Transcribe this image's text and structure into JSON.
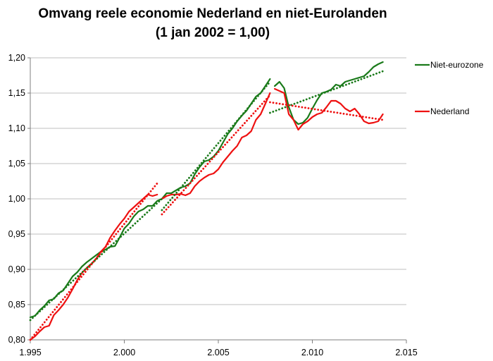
{
  "chart_data": {
    "type": "line",
    "title": "Omvang reele economie Nederland en niet-Eurolanden",
    "subtitle": "(1 jan 2002 = 1,00)",
    "xlabel": "",
    "ylabel": "",
    "xlim": [
      1995,
      2015
    ],
    "ylim": [
      0.8,
      1.2
    ],
    "x_ticks": [
      1995,
      2000,
      2005,
      2010,
      2015
    ],
    "x_tick_labels": [
      "1.995",
      "2.000",
      "2.005",
      "2.010",
      "2.015"
    ],
    "y_ticks": [
      0.8,
      0.85,
      0.9,
      0.95,
      1.0,
      1.05,
      1.1,
      1.15,
      1.2
    ],
    "y_tick_labels": [
      "0,80",
      "0,85",
      "0,90",
      "0,95",
      "1,00",
      "1,05",
      "1,10",
      "1,15",
      "1,20"
    ],
    "grid": "horizontal",
    "legend_position": "right",
    "colors": {
      "niet_eurozone": "#1a7a1a",
      "nederland": "#ee1111",
      "grid": "#bfbfbf"
    },
    "series": [
      {
        "name": "Niet-eurozone",
        "color": "#1a7a1a",
        "style": "solid",
        "segments": [
          [
            [
              1995.0,
              0.832
            ],
            [
              1995.25,
              0.834
            ],
            [
              1995.5,
              0.842
            ],
            [
              1995.75,
              0.848
            ],
            [
              1996.0,
              0.856
            ],
            [
              1996.25,
              0.858
            ],
            [
              1996.5,
              0.866
            ],
            [
              1996.75,
              0.87
            ],
            [
              1997.0,
              0.88
            ],
            [
              1997.25,
              0.89
            ],
            [
              1997.5,
              0.896
            ],
            [
              1997.75,
              0.904
            ],
            [
              1998.0,
              0.91
            ],
            [
              1998.25,
              0.915
            ],
            [
              1998.5,
              0.92
            ],
            [
              1998.75,
              0.925
            ],
            [
              1999.0,
              0.928
            ],
            [
              1999.25,
              0.932
            ],
            [
              1999.5,
              0.933
            ],
            [
              1999.75,
              0.945
            ],
            [
              2000.0,
              0.958
            ],
            [
              2000.25,
              0.965
            ],
            [
              2000.5,
              0.975
            ],
            [
              2000.75,
              0.982
            ],
            [
              2001.0,
              0.985
            ],
            [
              2001.25,
              0.99
            ],
            [
              2001.5,
              0.99
            ],
            [
              2001.75,
              0.997
            ],
            [
              2002.0,
              1.0
            ]
          ],
          [
            [
              2002.0,
              1.0
            ],
            [
              2002.25,
              1.008
            ],
            [
              2002.5,
              1.008
            ],
            [
              2002.75,
              1.012
            ],
            [
              2003.0,
              1.016
            ],
            [
              2003.25,
              1.018
            ],
            [
              2003.5,
              1.022
            ],
            [
              2003.75,
              1.035
            ],
            [
              2004.0,
              1.045
            ],
            [
              2004.25,
              1.053
            ],
            [
              2004.5,
              1.055
            ],
            [
              2004.75,
              1.06
            ],
            [
              2005.0,
              1.068
            ],
            [
              2005.25,
              1.08
            ],
            [
              2005.5,
              1.092
            ],
            [
              2005.75,
              1.1
            ],
            [
              2006.0,
              1.11
            ],
            [
              2006.25,
              1.118
            ],
            [
              2006.5,
              1.125
            ],
            [
              2006.75,
              1.135
            ],
            [
              2007.0,
              1.145
            ],
            [
              2007.25,
              1.15
            ],
            [
              2007.5,
              1.16
            ],
            [
              2007.75,
              1.17
            ]
          ],
          [
            [
              2008.0,
              1.16
            ],
            [
              2008.25,
              1.166
            ],
            [
              2008.5,
              1.157
            ],
            [
              2008.75,
              1.13
            ],
            [
              2009.0,
              1.112
            ],
            [
              2009.25,
              1.106
            ],
            [
              2009.5,
              1.108
            ],
            [
              2009.75,
              1.115
            ],
            [
              2010.0,
              1.128
            ],
            [
              2010.25,
              1.14
            ],
            [
              2010.5,
              1.15
            ],
            [
              2010.75,
              1.152
            ],
            [
              2011.0,
              1.155
            ],
            [
              2011.25,
              1.162
            ],
            [
              2011.5,
              1.16
            ],
            [
              2011.75,
              1.166
            ],
            [
              2012.0,
              1.168
            ],
            [
              2012.25,
              1.17
            ],
            [
              2012.5,
              1.172
            ],
            [
              2012.75,
              1.174
            ],
            [
              2013.0,
              1.18
            ],
            [
              2013.25,
              1.187
            ],
            [
              2013.5,
              1.191
            ],
            [
              2013.75,
              1.194
            ]
          ]
        ]
      },
      {
        "name": "Nederland",
        "color": "#ee1111",
        "style": "solid",
        "segments": [
          [
            [
              1995.0,
              0.8
            ],
            [
              1995.25,
              0.805
            ],
            [
              1995.5,
              0.812
            ],
            [
              1995.75,
              0.818
            ],
            [
              1996.0,
              0.82
            ],
            [
              1996.25,
              0.835
            ],
            [
              1996.5,
              0.842
            ],
            [
              1996.75,
              0.85
            ],
            [
              1997.0,
              0.86
            ],
            [
              1997.25,
              0.872
            ],
            [
              1997.5,
              0.885
            ],
            [
              1997.75,
              0.895
            ],
            [
              1998.0,
              0.902
            ],
            [
              1998.25,
              0.908
            ],
            [
              1998.5,
              0.915
            ],
            [
              1998.75,
              0.925
            ],
            [
              1999.0,
              0.932
            ],
            [
              1999.25,
              0.945
            ],
            [
              1999.5,
              0.955
            ],
            [
              1999.75,
              0.964
            ],
            [
              2000.0,
              0.972
            ],
            [
              2000.25,
              0.982
            ],
            [
              2000.5,
              0.988
            ],
            [
              2000.75,
              0.994
            ],
            [
              2001.0,
              1.0
            ],
            [
              2001.25,
              1.006
            ],
            [
              2001.5,
              1.004
            ],
            [
              2001.75,
              1.006
            ]
          ],
          [
            [
              2002.0,
              1.0
            ],
            [
              2002.25,
              1.004
            ],
            [
              2002.5,
              1.006
            ],
            [
              2002.75,
              1.006
            ],
            [
              2003.0,
              1.007
            ],
            [
              2003.25,
              1.005
            ],
            [
              2003.5,
              1.008
            ],
            [
              2003.75,
              1.018
            ],
            [
              2004.0,
              1.025
            ],
            [
              2004.25,
              1.03
            ],
            [
              2004.5,
              1.034
            ],
            [
              2004.75,
              1.036
            ],
            [
              2005.0,
              1.042
            ],
            [
              2005.25,
              1.052
            ],
            [
              2005.5,
              1.06
            ],
            [
              2005.75,
              1.068
            ],
            [
              2006.0,
              1.075
            ],
            [
              2006.25,
              1.087
            ],
            [
              2006.5,
              1.09
            ],
            [
              2006.75,
              1.096
            ],
            [
              2007.0,
              1.112
            ],
            [
              2007.25,
              1.12
            ],
            [
              2007.5,
              1.135
            ],
            [
              2007.75,
              1.15
            ]
          ],
          [
            [
              2008.0,
              1.156
            ],
            [
              2008.25,
              1.153
            ],
            [
              2008.5,
              1.15
            ],
            [
              2008.75,
              1.12
            ],
            [
              2009.0,
              1.112
            ],
            [
              2009.25,
              1.098
            ],
            [
              2009.5,
              1.106
            ],
            [
              2009.75,
              1.11
            ],
            [
              2010.0,
              1.116
            ],
            [
              2010.25,
              1.12
            ],
            [
              2010.5,
              1.122
            ],
            [
              2010.75,
              1.13
            ],
            [
              2011.0,
              1.139
            ],
            [
              2011.25,
              1.139
            ],
            [
              2011.5,
              1.135
            ],
            [
              2011.75,
              1.128
            ],
            [
              2012.0,
              1.124
            ],
            [
              2012.25,
              1.128
            ],
            [
              2012.5,
              1.12
            ],
            [
              2012.75,
              1.11
            ],
            [
              2013.0,
              1.107
            ],
            [
              2013.25,
              1.108
            ],
            [
              2013.5,
              1.11
            ],
            [
              2013.75,
              1.12
            ]
          ]
        ]
      },
      {
        "name": "Niet-eurozone trend",
        "color": "#1a7a1a",
        "style": "dotted",
        "segments": [
          [
            [
              1995.0,
              0.828
            ],
            [
              2002.0,
              1.0
            ]
          ],
          [
            [
              2002.0,
              0.984
            ],
            [
              2007.75,
              1.166
            ]
          ],
          [
            [
              2007.75,
              1.122
            ],
            [
              2013.75,
              1.181
            ]
          ]
        ]
      },
      {
        "name": "Nederland trend",
        "color": "#ee1111",
        "style": "dotted",
        "segments": [
          [
            [
              1995.0,
              0.8
            ],
            [
              2001.75,
              1.022
            ]
          ],
          [
            [
              2002.0,
              0.978
            ],
            [
              2007.75,
              1.147
            ]
          ],
          [
            [
              2007.75,
              1.137
            ],
            [
              2013.75,
              1.112
            ]
          ]
        ]
      }
    ],
    "legend": [
      {
        "label": "Niet-eurozone",
        "color": "#1a7a1a",
        "y": 1.19
      },
      {
        "label": "Nederland",
        "color": "#ee1111",
        "y": 1.124
      }
    ]
  }
}
